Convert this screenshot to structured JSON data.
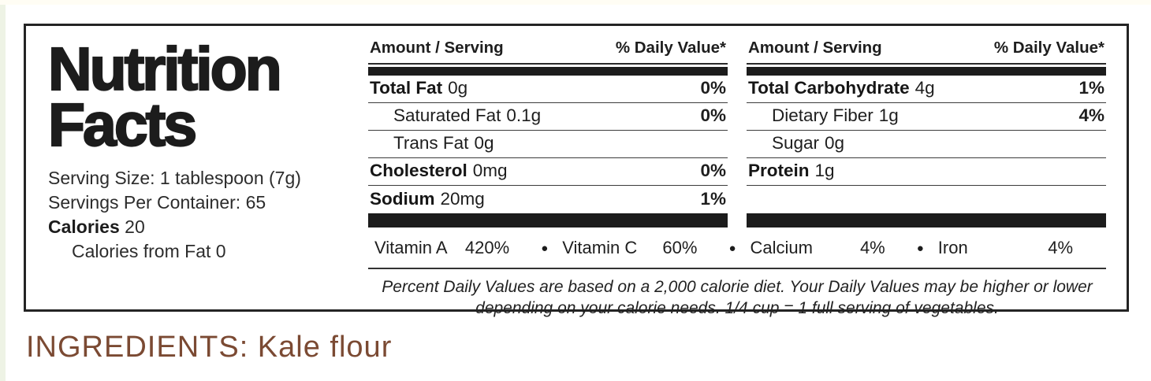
{
  "colors": {
    "ink": "#1e1e1e",
    "ingredients_text": "#7b4a33",
    "left_strip": "#eef3e5",
    "top_strip": "#fffdf4",
    "bar_color": "#1c1c1c"
  },
  "label": {
    "title_line1": "Nutrition",
    "title_line2": "Facts",
    "serving": {
      "serving_size": "Serving Size: 1 tablespoon (7g)",
      "servings_per_container": "Servings Per Container: 65",
      "calories_label": "Calories",
      "calories_value": "20",
      "calories_from_fat": "Calories from Fat 0"
    },
    "columns": [
      {
        "header_amount": "Amount / Serving",
        "header_dv": "% Daily Value*",
        "rows": [
          {
            "name": "Total Fat",
            "amount": "0g",
            "dv": "0%"
          },
          {
            "name": "Saturated Fat",
            "amount": "0.1g",
            "dv": "0%"
          },
          {
            "name": "Trans Fat",
            "amount": "0g",
            "dv": ""
          },
          {
            "name": "Cholesterol",
            "amount": "0mg",
            "dv": "0%"
          },
          {
            "name": "Sodium",
            "amount": "20mg",
            "dv": "1%"
          }
        ]
      },
      {
        "header_amount": "Amount / Serving",
        "header_dv": "% Daily Value*",
        "rows": [
          {
            "name": "Total Carbohydrate",
            "amount": "4g",
            "dv": "1%"
          },
          {
            "name": "Dietary Fiber",
            "amount": "1g",
            "dv": "4%"
          },
          {
            "name": "Sugar",
            "amount": "0g",
            "dv": ""
          },
          {
            "name": "Protein",
            "amount": "1g",
            "dv": ""
          }
        ]
      }
    ],
    "micro_separator": "●",
    "micronutrients": [
      {
        "name": "Vitamin A",
        "value": "420%"
      },
      {
        "name": "Vitamin C",
        "value": "60%"
      },
      {
        "name": "Calcium",
        "value": "4%"
      },
      {
        "name": "Iron",
        "value": "4%"
      }
    ],
    "footnote_line1": "Percent Daily Values are based on a 2,000 calorie diet. Your Daily Values may be higher or lower",
    "footnote_line2": "depending on your calorie needs. 1/4 cup = 1 full serving of vegetables."
  },
  "ingredients": {
    "text": "INGREDIENTS: Kale flour"
  }
}
